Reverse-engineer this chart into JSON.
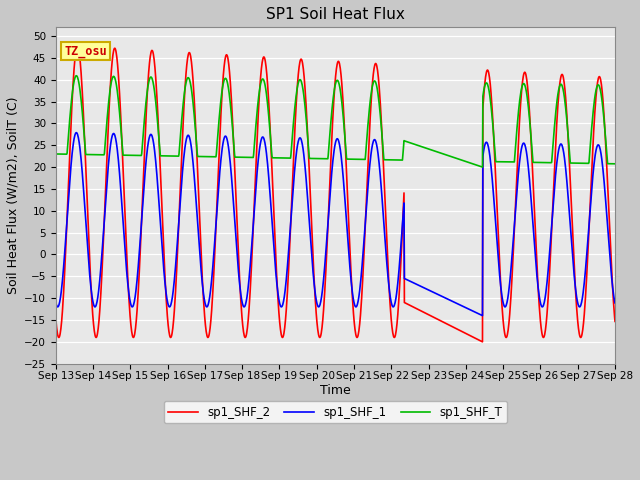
{
  "title": "SP1 Soil Heat Flux",
  "xlabel": "Time",
  "ylabel": "Soil Heat Flux (W/m2), SoilT (C)",
  "ylim": [
    -25,
    52
  ],
  "yticks": [
    -25,
    -20,
    -15,
    -10,
    -5,
    0,
    5,
    10,
    15,
    20,
    25,
    30,
    35,
    40,
    45,
    50
  ],
  "xtick_labels": [
    "Sep 13",
    "Sep 14",
    "Sep 15",
    "Sep 16",
    "Sep 17",
    "Sep 18",
    "Sep 19",
    "Sep 20",
    "Sep 21",
    "Sep 22",
    "Sep 23",
    "Sep 24",
    "Sep 25",
    "Sep 26",
    "Sep 27",
    "Sep 28"
  ],
  "color_red": "#ff0000",
  "color_blue": "#0000ff",
  "color_green": "#00bb00",
  "legend_labels": [
    "sp1_SHF_2",
    "sp1_SHF_1",
    "sp1_SHF_T"
  ],
  "annotation_text": "TZ_osu",
  "annotation_color": "#cc0000",
  "annotation_bg": "#ffff99",
  "annotation_border": "#ccaa00",
  "fig_bg": "#c8c8c8",
  "plot_bg": "#e8e8e8",
  "linewidth": 1.2,
  "title_fontsize": 11,
  "axis_fontsize": 9,
  "tick_fontsize": 7.5
}
